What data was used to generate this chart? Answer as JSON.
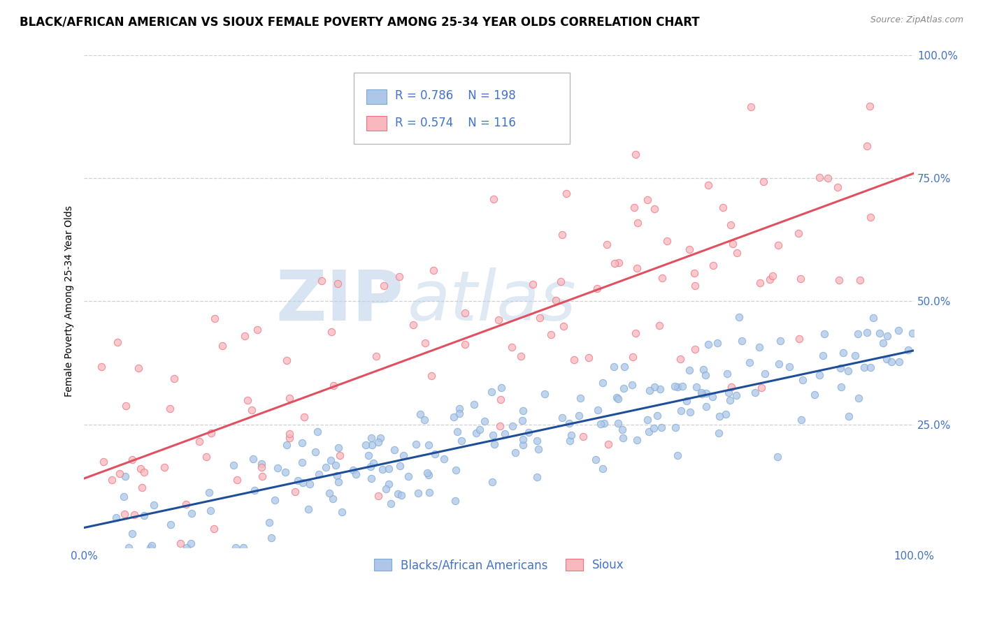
{
  "title": "BLACK/AFRICAN AMERICAN VS SIOUX FEMALE POVERTY AMONG 25-34 YEAR OLDS CORRELATION CHART",
  "source": "Source: ZipAtlas.com",
  "ylabel": "Female Poverty Among 25-34 Year Olds",
  "xlim": [
    0,
    1
  ],
  "ylim": [
    0,
    1
  ],
  "xticklabels": [
    "0.0%",
    "100.0%"
  ],
  "ytick_positions": [
    0.25,
    0.5,
    0.75,
    1.0
  ],
  "ytick_labels": [
    "25.0%",
    "50.0%",
    "75.0%",
    "100.0%"
  ],
  "blue_R": 0.786,
  "blue_N": 198,
  "pink_R": 0.574,
  "pink_N": 116,
  "blue_color": "#aec6e8",
  "blue_edge_color": "#7baad4",
  "blue_line_color": "#1f4e99",
  "pink_color": "#f9b8be",
  "pink_edge_color": "#f07080",
  "pink_line_color": "#e05060",
  "blue_line_y0": 0.04,
  "blue_line_y1": 0.4,
  "pink_line_y0": 0.14,
  "pink_line_y1": 0.76,
  "legend_label_blue": "Blacks/African Americans",
  "legend_label_pink": "Sioux",
  "watermark_zip": "ZIP",
  "watermark_atlas": "atlas",
  "background_color": "#ffffff",
  "grid_color": "#d0d0d0",
  "title_fontsize": 12,
  "axis_label_fontsize": 10,
  "tick_fontsize": 11,
  "tick_label_color": "#4472c4",
  "legend_r_color": "#4472c4",
  "source_color": "#888888"
}
